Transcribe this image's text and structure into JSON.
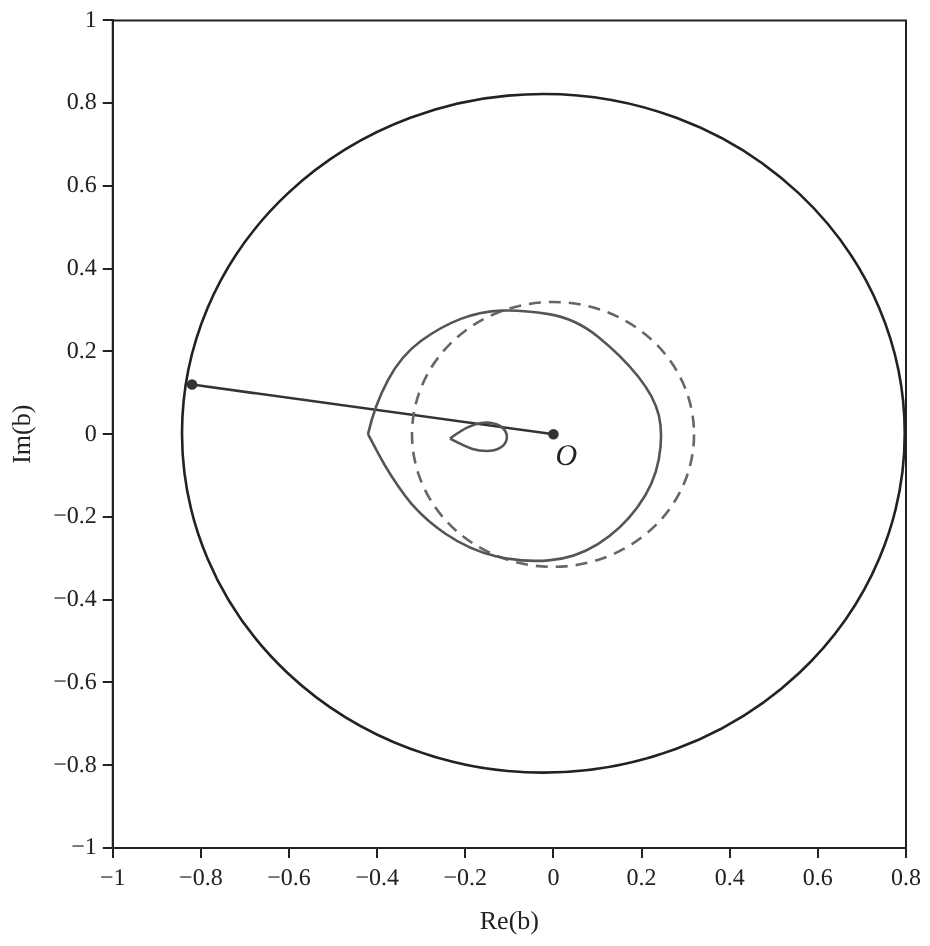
{
  "chart_data": {
    "type": "line",
    "xlabel": "Re(b)",
    "ylabel": "Im(b)",
    "xlim": [
      -1,
      0.8
    ],
    "ylim": [
      -1,
      1
    ],
    "xticks": [
      {
        "value": -1,
        "label": "−1"
      },
      {
        "value": -0.8,
        "label": "−0.8"
      },
      {
        "value": -0.6,
        "label": "−0.6"
      },
      {
        "value": -0.4,
        "label": "−0.4"
      },
      {
        "value": -0.2,
        "label": "−0.2"
      },
      0,
      0.2,
      0.4,
      0.6,
      0.8
    ],
    "yticks": [
      {
        "value": -1,
        "label": "−1"
      },
      {
        "value": -0.8,
        "label": "−0.8"
      },
      {
        "value": -0.6,
        "label": "−0.6"
      },
      {
        "value": -0.4,
        "label": "−0.4"
      },
      {
        "value": -0.2,
        "label": "−0.2"
      },
      0,
      0.2,
      0.4,
      0.6,
      0.8,
      1
    ],
    "grid": false,
    "legend": false,
    "marker": "circle",
    "annotations": [
      {
        "text": "O",
        "x": 0,
        "y": 0
      }
    ],
    "series": [
      {
        "color": "#333333",
        "line_style": "solid",
        "x": [
          -0.82,
          0
        ],
        "values": [
          0.12,
          0
        ]
      }
    ]
  }
}
